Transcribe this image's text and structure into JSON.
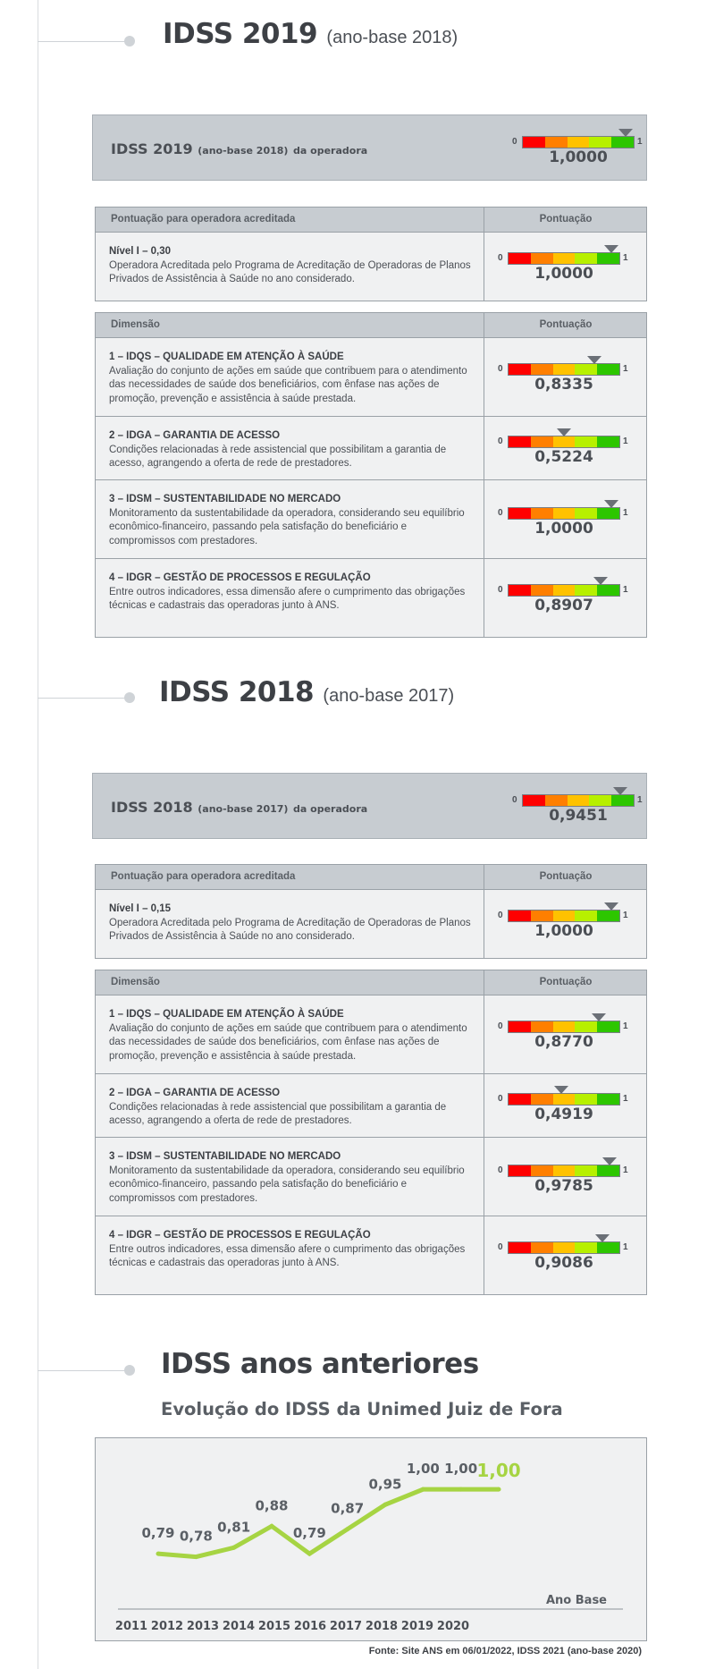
{
  "colors": {
    "gauge": [
      "#ff0000",
      "#ff7f00",
      "#ffc200",
      "#b7f000",
      "#2dc600"
    ],
    "line": "#a6d443",
    "highlight_label": "#a6d443"
  },
  "idss2019": {
    "title": "IDSS 2019",
    "title_sub": "(ano-base 2018)",
    "operator": {
      "label": "IDSS 2019",
      "label_sub": "(ano-base 2018)",
      "label_tail": "da operadora",
      "value": "1,0000",
      "score": 1.0
    },
    "accredited": {
      "header_left": "Pontuação para operadora acreditada",
      "header_right": "Pontuação",
      "level": "Nível I – 0,30",
      "description": "Operadora Acreditada pelo Programa de Acreditação de Operadoras de Planos Privados de Assistência à Saúde no ano considerado.",
      "value": "1,0000",
      "score": 1.0
    },
    "dimensions": {
      "header_left": "Dimensão",
      "header_right": "Pontuação",
      "items": [
        {
          "title": "1 – IDQS – QUALIDADE EM ATENÇÃO À SAÚDE",
          "description": "Avaliação do conjunto de ações em saúde que contribuem para o atendimento das necessidades de saúde dos beneficiários, com ênfase nas ações de promoção, prevenção e assistência à saúde prestada.",
          "value": "0,8335",
          "score": 0.8335
        },
        {
          "title": "2 – IDGA – GARANTIA DE ACESSO",
          "description": "Condições relacionadas à rede assistencial que possibilitam a garantia de acesso, agrangendo a oferta de rede de prestadores.",
          "value": "0,5224",
          "score": 0.5224
        },
        {
          "title": "3 – IDSM – SUSTENTABILIDADE NO MERCADO",
          "description": "Monitoramento da sustentabilidade da operadora, considerando seu equilíbrio econômico-financeiro, passando pela satisfação do beneficiário e compromissos com prestadores.",
          "value": "1,0000",
          "score": 1.0
        },
        {
          "title": "4 – IDGR – GESTÃO DE PROCESSOS E REGULAÇÃO",
          "description": "Entre outros indicadores, essa dimensão afere o cumprimento das obrigações técnicas e cadastrais das operadoras junto à ANS.",
          "value": "0,8907",
          "score": 0.8907
        }
      ]
    }
  },
  "idss2018": {
    "title": "IDSS 2018",
    "title_sub": "(ano-base 2017)",
    "operator": {
      "label": "IDSS 2018",
      "label_sub": "(ano-base 2017)",
      "label_tail": "da operadora",
      "value": "0,9451",
      "score": 0.9451
    },
    "accredited": {
      "header_left": "Pontuação para operadora acreditada",
      "header_right": "Pontuação",
      "level": "Nível I – 0,15",
      "description": "Operadora Acreditada pelo Programa de Acreditação de Operadoras de Planos Privados de Assistência à Saúde no ano considerado.",
      "value": "1,0000",
      "score": 1.0
    },
    "dimensions": {
      "header_left": "Dimensão",
      "header_right": "Pontuação",
      "items": [
        {
          "title": "1 – IDQS – QUALIDADE EM ATENÇÃO À SAÚDE",
          "description": "Avaliação do conjunto de ações em saúde que contribuem para o atendimento das necessidades de saúde dos beneficiários, com ênfase nas ações de promoção, prevenção e assistência à saúde prestada.",
          "value": "0,8770",
          "score": 0.877
        },
        {
          "title": "2 – IDGA – GARANTIA DE ACESSO",
          "description": "Condições relacionadas à rede assistencial que possibilitam a garantia de acesso, agrangendo a oferta de rede de prestadores.",
          "value": "0,4919",
          "score": 0.4919
        },
        {
          "title": "3 – IDSM – SUSTENTABILIDADE NO MERCADO",
          "description": "Monitoramento da sustentabilidade da operadora, considerando seu equilíbrio econômico-financeiro, passando pela satisfação do beneficiário e compromissos com prestadores.",
          "value": "0,9785",
          "score": 0.9785
        },
        {
          "title": "4 – IDGR – GESTÃO DE PROCESSOS E REGULAÇÃO",
          "description": "Entre outros indicadores, essa dimensão afere o cumprimento das obrigações técnicas e cadastrais das operadoras junto à ANS.",
          "value": "0,9086",
          "score": 0.9086
        }
      ]
    }
  },
  "gauge_labels": {
    "min": "0",
    "max": "1"
  },
  "history": {
    "title": "IDSS anos anteriores",
    "chart_title": "Evolução do IDSS da Unimed  Juiz de Fora",
    "source": "Fonte: Site ANS em 06/01/2022, IDSS 2021 (ano-base 2020)"
  },
  "chart_data": {
    "type": "line",
    "title": "Evolução do IDSS da Unimed  Juiz de Fora",
    "xlabel": "Ano Base",
    "ylabel": "",
    "categories": [
      "2011",
      "2012",
      "2013",
      "2014",
      "2015",
      "2016",
      "2017",
      "2018",
      "2019",
      "2020"
    ],
    "series": [
      {
        "values": [
          0.79,
          0.78,
          0.81,
          0.88,
          0.79,
          0.87,
          0.95,
          1.0,
          1.0,
          1.0
        ]
      }
    ],
    "data_labels": [
      "0,79",
      "0,78",
      "0,81",
      "0,88",
      "0,79",
      "0,87",
      "0,95",
      "1,00",
      "1,00",
      "1,00"
    ],
    "grid": false,
    "legend": "none"
  }
}
